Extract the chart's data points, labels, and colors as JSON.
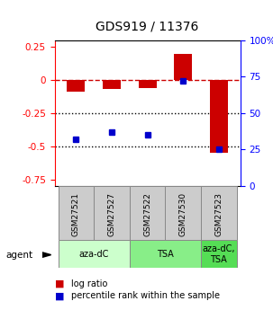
{
  "title": "GDS919 / 11376",
  "samples": [
    "GSM27521",
    "GSM27527",
    "GSM27522",
    "GSM27530",
    "GSM27523"
  ],
  "log_ratio": [
    -0.09,
    -0.07,
    -0.06,
    0.2,
    -0.55
  ],
  "percentile_rank": [
    32,
    37,
    35,
    72,
    25
  ],
  "ylim_left": [
    -0.8,
    0.3
  ],
  "ylim_right": [
    0,
    100
  ],
  "yticks_left": [
    0.25,
    0.0,
    -0.25,
    -0.5,
    -0.75
  ],
  "yticks_right": [
    100,
    75,
    50,
    25,
    0
  ],
  "bar_color": "#cc0000",
  "dot_color": "#0000cc",
  "agent_groups": [
    {
      "label": "aza-dC",
      "start": 0,
      "end": 2,
      "color": "#ccffcc"
    },
    {
      "label": "TSA",
      "start": 2,
      "end": 4,
      "color": "#88ee88"
    },
    {
      "label": "aza-dC,\nTSA",
      "start": 4,
      "end": 5,
      "color": "#55dd55"
    }
  ],
  "agent_label": "agent",
  "legend_items": [
    {
      "color": "#cc0000",
      "label": "log ratio"
    },
    {
      "color": "#0000cc",
      "label": "percentile rank within the sample"
    }
  ],
  "hline_zero_color": "#cc0000",
  "hline_dotted_color": "#000000",
  "bar_width": 0.5,
  "bg_color": "#ffffff"
}
